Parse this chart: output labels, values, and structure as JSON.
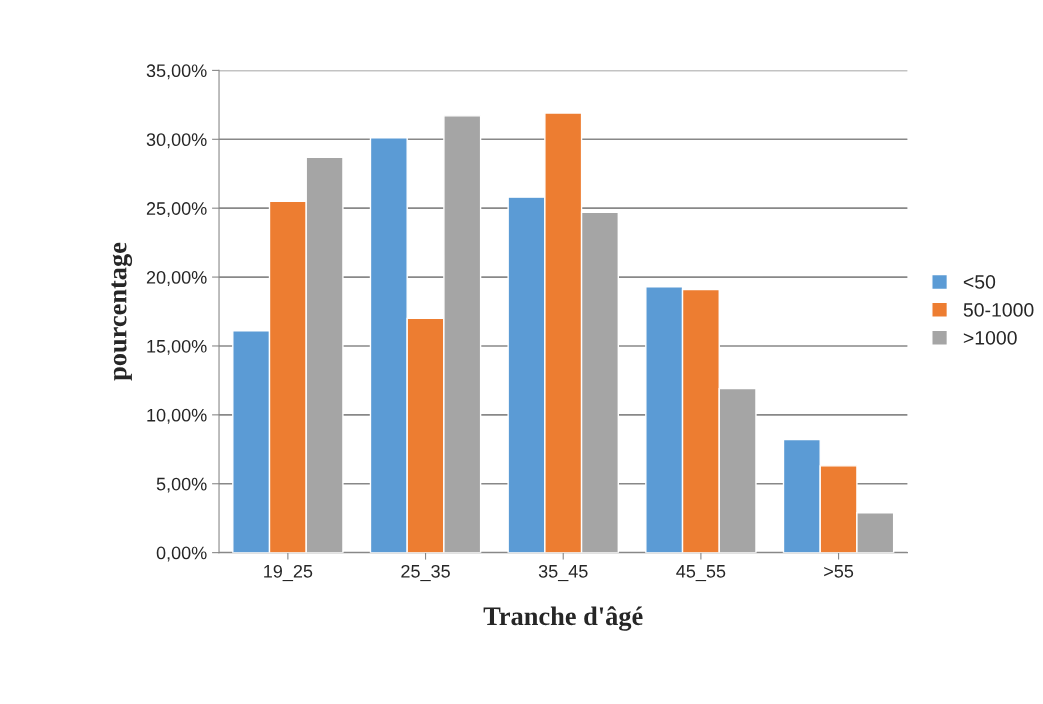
{
  "chart_data": {
    "type": "bar",
    "xlabel": "Tranche d'âgé",
    "ylabel": "pourcentage",
    "categories": [
      "19_25",
      "25_35",
      "35_45",
      "45_55",
      ">55"
    ],
    "series": [
      {
        "name": "<50",
        "color": "#5b9bd5",
        "values": [
          16.1,
          30.1,
          25.8,
          19.3,
          8.2
        ]
      },
      {
        "name": "50-1000",
        "color": "#ed7d31",
        "values": [
          25.5,
          17.0,
          31.9,
          19.1,
          6.3
        ]
      },
      {
        "name": ">1000",
        "color": "#a5a5a5",
        "values": [
          28.7,
          31.7,
          24.7,
          11.9,
          2.9
        ]
      }
    ],
    "ylim": [
      0,
      35
    ],
    "yticks": [
      {
        "value": 0,
        "label": "0,00%"
      },
      {
        "value": 5,
        "label": "5,00%"
      },
      {
        "value": 10,
        "label": "10,00%"
      },
      {
        "value": 15,
        "label": "15,00%"
      },
      {
        "value": 20,
        "label": "20,00%"
      },
      {
        "value": 25,
        "label": "25,00%"
      },
      {
        "value": 30,
        "label": "30,00%"
      },
      {
        "value": 35,
        "label": "35,00%"
      }
    ],
    "grid": "y",
    "legend": "right"
  }
}
